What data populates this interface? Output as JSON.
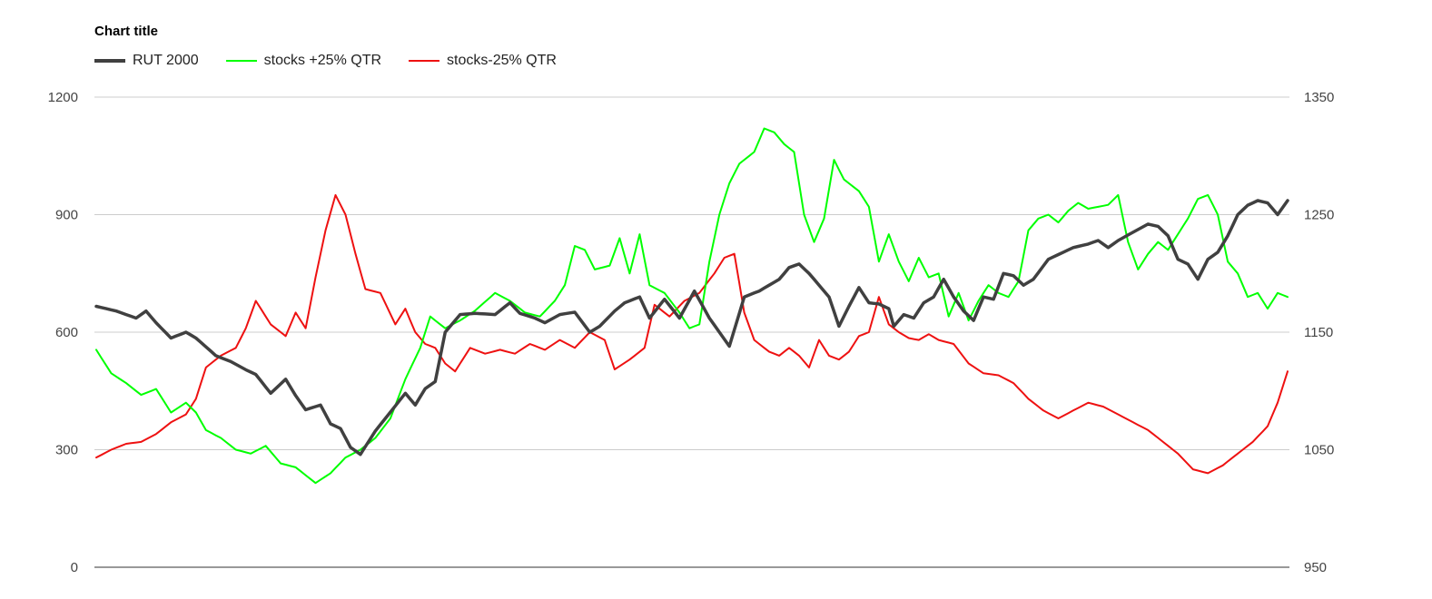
{
  "chart_data": {
    "type": "line",
    "title": "Chart title",
    "legend_position": "top-left",
    "grid": true,
    "left_axis": {
      "ylim": [
        0,
        1200
      ],
      "ticks": [
        "0",
        "300",
        "600",
        "900",
        "1200"
      ]
    },
    "right_axis": {
      "ylim": [
        950,
        1350
      ],
      "ticks": [
        "950",
        "1050",
        "1150",
        "1250",
        "1350"
      ]
    },
    "point_count": 240,
    "series": [
      {
        "name": "RUT 2000",
        "color": "#404040",
        "axis": "right",
        "anchors": [
          [
            0,
            1172
          ],
          [
            4,
            1168
          ],
          [
            8,
            1162
          ],
          [
            10,
            1168
          ],
          [
            12,
            1158
          ],
          [
            15,
            1145
          ],
          [
            18,
            1150
          ],
          [
            20,
            1145
          ],
          [
            24,
            1130
          ],
          [
            27,
            1125
          ],
          [
            30,
            1118
          ],
          [
            32,
            1114
          ],
          [
            35,
            1098
          ],
          [
            38,
            1110
          ],
          [
            40,
            1096
          ],
          [
            42,
            1084
          ],
          [
            45,
            1088
          ],
          [
            47,
            1072
          ],
          [
            49,
            1068
          ],
          [
            51,
            1052
          ],
          [
            53,
            1046
          ],
          [
            56,
            1066
          ],
          [
            59,
            1082
          ],
          [
            62,
            1098
          ],
          [
            64,
            1088
          ],
          [
            66,
            1102
          ],
          [
            68,
            1108
          ],
          [
            70,
            1150
          ],
          [
            73,
            1165
          ],
          [
            76,
            1166
          ],
          [
            80,
            1165
          ],
          [
            83,
            1175
          ],
          [
            85,
            1166
          ],
          [
            88,
            1162
          ],
          [
            90,
            1158
          ],
          [
            93,
            1165
          ],
          [
            96,
            1167
          ],
          [
            99,
            1150
          ],
          [
            101,
            1155
          ],
          [
            104,
            1168
          ],
          [
            106,
            1175
          ],
          [
            109,
            1180
          ],
          [
            111,
            1162
          ],
          [
            114,
            1178
          ],
          [
            117,
            1162
          ],
          [
            120,
            1185
          ],
          [
            123,
            1162
          ],
          [
            125,
            1150
          ],
          [
            127,
            1138
          ],
          [
            130,
            1180
          ],
          [
            133,
            1185
          ],
          [
            135,
            1190
          ],
          [
            137,
            1195
          ],
          [
            139,
            1205
          ],
          [
            141,
            1208
          ],
          [
            143,
            1200
          ],
          [
            145,
            1190
          ],
          [
            147,
            1180
          ],
          [
            149,
            1155
          ],
          [
            151,
            1172
          ],
          [
            153,
            1188
          ],
          [
            155,
            1175
          ],
          [
            157,
            1174
          ],
          [
            159,
            1170
          ],
          [
            160,
            1155
          ],
          [
            162,
            1165
          ],
          [
            164,
            1162
          ],
          [
            166,
            1175
          ],
          [
            168,
            1180
          ],
          [
            170,
            1195
          ],
          [
            172,
            1180
          ],
          [
            174,
            1168
          ],
          [
            176,
            1160
          ],
          [
            178,
            1180
          ],
          [
            180,
            1178
          ],
          [
            182,
            1200
          ],
          [
            184,
            1198
          ],
          [
            186,
            1190
          ],
          [
            188,
            1195
          ],
          [
            191,
            1212
          ],
          [
            194,
            1218
          ],
          [
            196,
            1222
          ],
          [
            199,
            1225
          ],
          [
            201,
            1228
          ],
          [
            203,
            1222
          ],
          [
            205,
            1228
          ],
          [
            208,
            1235
          ],
          [
            211,
            1242
          ],
          [
            213,
            1240
          ],
          [
            215,
            1232
          ],
          [
            217,
            1212
          ],
          [
            219,
            1208
          ],
          [
            221,
            1195
          ],
          [
            223,
            1212
          ],
          [
            225,
            1218
          ],
          [
            227,
            1232
          ],
          [
            229,
            1250
          ],
          [
            231,
            1258
          ],
          [
            233,
            1262
          ],
          [
            235,
            1260
          ],
          [
            237,
            1250
          ],
          [
            239,
            1262
          ]
        ]
      },
      {
        "name": "stocks +25% QTR",
        "color": "#00ff00",
        "axis": "left",
        "anchors": [
          [
            0,
            555
          ],
          [
            3,
            495
          ],
          [
            6,
            470
          ],
          [
            9,
            440
          ],
          [
            12,
            455
          ],
          [
            15,
            395
          ],
          [
            18,
            420
          ],
          [
            20,
            395
          ],
          [
            22,
            350
          ],
          [
            25,
            330
          ],
          [
            28,
            300
          ],
          [
            31,
            290
          ],
          [
            34,
            310
          ],
          [
            37,
            265
          ],
          [
            40,
            255
          ],
          [
            42,
            235
          ],
          [
            44,
            215
          ],
          [
            47,
            240
          ],
          [
            50,
            280
          ],
          [
            53,
            300
          ],
          [
            56,
            330
          ],
          [
            59,
            380
          ],
          [
            62,
            480
          ],
          [
            65,
            560
          ],
          [
            67,
            640
          ],
          [
            70,
            610
          ],
          [
            73,
            630
          ],
          [
            76,
            655
          ],
          [
            80,
            700
          ],
          [
            83,
            680
          ],
          [
            86,
            650
          ],
          [
            89,
            640
          ],
          [
            92,
            680
          ],
          [
            94,
            720
          ],
          [
            96,
            820
          ],
          [
            98,
            810
          ],
          [
            100,
            760
          ],
          [
            103,
            770
          ],
          [
            105,
            840
          ],
          [
            107,
            750
          ],
          [
            109,
            850
          ],
          [
            111,
            720
          ],
          [
            114,
            700
          ],
          [
            117,
            650
          ],
          [
            119,
            610
          ],
          [
            121,
            620
          ],
          [
            123,
            780
          ],
          [
            125,
            900
          ],
          [
            127,
            980
          ],
          [
            129,
            1030
          ],
          [
            132,
            1060
          ],
          [
            134,
            1120
          ],
          [
            136,
            1110
          ],
          [
            138,
            1080
          ],
          [
            140,
            1060
          ],
          [
            142,
            900
          ],
          [
            144,
            830
          ],
          [
            146,
            890
          ],
          [
            148,
            1040
          ],
          [
            150,
            990
          ],
          [
            153,
            960
          ],
          [
            155,
            920
          ],
          [
            157,
            780
          ],
          [
            159,
            850
          ],
          [
            161,
            780
          ],
          [
            163,
            730
          ],
          [
            165,
            790
          ],
          [
            167,
            740
          ],
          [
            169,
            750
          ],
          [
            171,
            640
          ],
          [
            173,
            700
          ],
          [
            175,
            630
          ],
          [
            177,
            680
          ],
          [
            179,
            720
          ],
          [
            181,
            700
          ],
          [
            183,
            690
          ],
          [
            185,
            730
          ],
          [
            187,
            860
          ],
          [
            189,
            890
          ],
          [
            191,
            900
          ],
          [
            193,
            880
          ],
          [
            195,
            910
          ],
          [
            197,
            930
          ],
          [
            199,
            915
          ],
          [
            201,
            920
          ],
          [
            203,
            925
          ],
          [
            205,
            950
          ],
          [
            207,
            830
          ],
          [
            209,
            760
          ],
          [
            211,
            800
          ],
          [
            213,
            830
          ],
          [
            215,
            810
          ],
          [
            217,
            850
          ],
          [
            219,
            890
          ],
          [
            221,
            940
          ],
          [
            223,
            950
          ],
          [
            225,
            900
          ],
          [
            227,
            780
          ],
          [
            229,
            750
          ],
          [
            231,
            690
          ],
          [
            233,
            700
          ],
          [
            235,
            660
          ],
          [
            237,
            700
          ],
          [
            239,
            690
          ]
        ]
      },
      {
        "name": "stocks-25% QTR",
        "color": "#ee1111",
        "axis": "left",
        "anchors": [
          [
            0,
            280
          ],
          [
            3,
            300
          ],
          [
            6,
            315
          ],
          [
            9,
            320
          ],
          [
            12,
            340
          ],
          [
            15,
            370
          ],
          [
            18,
            390
          ],
          [
            20,
            430
          ],
          [
            22,
            510
          ],
          [
            25,
            540
          ],
          [
            28,
            560
          ],
          [
            30,
            610
          ],
          [
            32,
            680
          ],
          [
            35,
            620
          ],
          [
            38,
            590
          ],
          [
            40,
            650
          ],
          [
            42,
            610
          ],
          [
            44,
            740
          ],
          [
            46,
            860
          ],
          [
            48,
            950
          ],
          [
            50,
            900
          ],
          [
            52,
            800
          ],
          [
            54,
            710
          ],
          [
            57,
            700
          ],
          [
            60,
            620
          ],
          [
            62,
            660
          ],
          [
            64,
            600
          ],
          [
            66,
            570
          ],
          [
            68,
            560
          ],
          [
            70,
            520
          ],
          [
            72,
            500
          ],
          [
            75,
            560
          ],
          [
            78,
            545
          ],
          [
            81,
            555
          ],
          [
            84,
            545
          ],
          [
            87,
            570
          ],
          [
            90,
            555
          ],
          [
            93,
            580
          ],
          [
            96,
            560
          ],
          [
            99,
            600
          ],
          [
            102,
            580
          ],
          [
            104,
            505
          ],
          [
            107,
            530
          ],
          [
            110,
            560
          ],
          [
            112,
            670
          ],
          [
            115,
            640
          ],
          [
            118,
            680
          ],
          [
            121,
            700
          ],
          [
            124,
            750
          ],
          [
            126,
            790
          ],
          [
            128,
            800
          ],
          [
            130,
            650
          ],
          [
            132,
            580
          ],
          [
            135,
            550
          ],
          [
            137,
            540
          ],
          [
            139,
            560
          ],
          [
            141,
            540
          ],
          [
            143,
            510
          ],
          [
            145,
            580
          ],
          [
            147,
            540
          ],
          [
            149,
            530
          ],
          [
            151,
            550
          ],
          [
            153,
            590
          ],
          [
            155,
            600
          ],
          [
            157,
            690
          ],
          [
            159,
            620
          ],
          [
            161,
            600
          ],
          [
            163,
            585
          ],
          [
            165,
            580
          ],
          [
            167,
            595
          ],
          [
            169,
            580
          ],
          [
            172,
            570
          ],
          [
            175,
            520
          ],
          [
            178,
            495
          ],
          [
            181,
            490
          ],
          [
            184,
            470
          ],
          [
            187,
            430
          ],
          [
            190,
            400
          ],
          [
            193,
            380
          ],
          [
            196,
            400
          ],
          [
            199,
            420
          ],
          [
            202,
            410
          ],
          [
            205,
            390
          ],
          [
            208,
            370
          ],
          [
            211,
            350
          ],
          [
            214,
            320
          ],
          [
            217,
            290
          ],
          [
            220,
            250
          ],
          [
            223,
            240
          ],
          [
            226,
            260
          ],
          [
            229,
            290
          ],
          [
            232,
            320
          ],
          [
            235,
            360
          ],
          [
            237,
            420
          ],
          [
            239,
            500
          ]
        ]
      }
    ]
  }
}
